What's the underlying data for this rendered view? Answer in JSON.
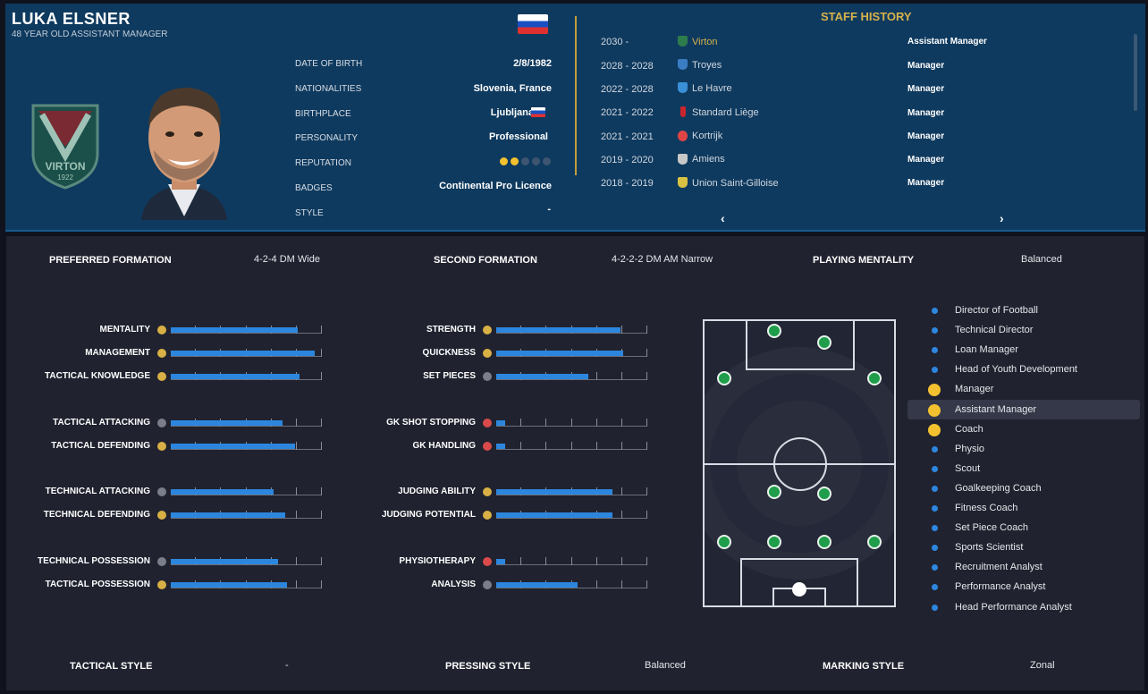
{
  "profile": {
    "name": "LUKA ELSNER",
    "subtitle": "48 YEAR OLD ASSISTANT MANAGER",
    "club_badge_text": "VIRTON",
    "club_badge_year": "1922"
  },
  "details": [
    {
      "label": "DATE OF BIRTH",
      "value": "2/8/1982"
    },
    {
      "label": "NATIONALITIES",
      "value": "Slovenia, France"
    },
    {
      "label": "BIRTHPLACE",
      "value": "Ljubljana"
    },
    {
      "label": "PERSONALITY",
      "value": "Professional"
    },
    {
      "label": "REPUTATION",
      "value": "",
      "reputation_stars": 2,
      "reputation_max": 5
    },
    {
      "label": "BADGES",
      "value": "Continental Pro Licence"
    },
    {
      "label": "STYLE",
      "value": "-"
    }
  ],
  "staff_history": {
    "title": "STAFF HISTORY",
    "rows": [
      {
        "years": "2030 -",
        "club": "Virton",
        "role": "Assistant Manager",
        "highlight": true
      },
      {
        "years": "2028 - 2028",
        "club": "Troyes",
        "role": "Manager"
      },
      {
        "years": "2022 - 2028",
        "club": "Le Havre",
        "role": "Manager"
      },
      {
        "years": "2021 - 2022",
        "club": "Standard Liège",
        "role": "Manager"
      },
      {
        "years": "2021 - 2021",
        "club": "Kortrijk",
        "role": "Manager"
      },
      {
        "years": "2019 - 2020",
        "club": "Amiens",
        "role": "Manager"
      },
      {
        "years": "2018 - 2019",
        "club": "Union Saint-Gilloise",
        "role": "Manager"
      }
    ],
    "prev_icon": "chevron-left-icon",
    "next_icon": "chevron-right-icon"
  },
  "formations": {
    "preferred_label": "PREFERRED FORMATION",
    "preferred": "4-2-4 DM Wide",
    "second_label": "SECOND FORMATION",
    "second": "4-2-2-2 DM AM Narrow",
    "mentality_label": "PLAYING MENTALITY",
    "mentality": "Balanced"
  },
  "attributes_left": [
    {
      "label": "MENTALITY",
      "value": 0.84
    },
    {
      "label": "MANAGEMENT",
      "value": 0.95
    },
    {
      "label": "TACTICAL KNOWLEDGE",
      "value": 0.85
    },
    {
      "label": "TACTICAL ATTACKING",
      "value": 0.74
    },
    {
      "label": "TACTICAL DEFENDING",
      "value": 0.82
    },
    {
      "label": "TECHNICAL ATTACKING",
      "value": 0.68
    },
    {
      "label": "TECHNICAL DEFENDING",
      "value": 0.76
    },
    {
      "label": "TECHNICAL POSSESSION",
      "value": 0.71
    },
    {
      "label": "TACTICAL POSSESSION",
      "value": 0.77
    }
  ],
  "attributes_right": [
    {
      "label": "STRENGTH",
      "value": 0.82
    },
    {
      "label": "QUICKNESS",
      "value": 0.84
    },
    {
      "label": "SET PIECES",
      "value": 0.61
    },
    {
      "label": "GK SHOT STOPPING",
      "value": 0.06
    },
    {
      "label": "GK HANDLING",
      "value": 0.06
    },
    {
      "label": "JUDGING ABILITY",
      "value": 0.77
    },
    {
      "label": "JUDGING POTENTIAL",
      "value": 0.77
    },
    {
      "label": "PHYSIOTHERAPY",
      "value": 0.06
    },
    {
      "label": "ANALYSIS",
      "value": 0.54
    }
  ],
  "roles": [
    {
      "label": "Director of Football",
      "strong": false
    },
    {
      "label": "Technical Director",
      "strong": false
    },
    {
      "label": "Loan Manager",
      "strong": false
    },
    {
      "label": "Head of Youth Development",
      "strong": false
    },
    {
      "label": "Manager",
      "strong": true
    },
    {
      "label": "Assistant Manager",
      "strong": true,
      "selected": true
    },
    {
      "label": "Coach",
      "strong": true
    },
    {
      "label": "Physio",
      "strong": false
    },
    {
      "label": "Scout",
      "strong": false
    },
    {
      "label": "Goalkeeping Coach",
      "strong": false
    },
    {
      "label": "Fitness Coach",
      "strong": false
    },
    {
      "label": "Set Piece Coach",
      "strong": false
    },
    {
      "label": "Sports Scientist",
      "strong": false
    },
    {
      "label": "Recruitment Analyst",
      "strong": false
    },
    {
      "label": "Performance Analyst",
      "strong": false
    },
    {
      "label": "Head Performance Analyst",
      "strong": false
    }
  ],
  "styles": {
    "tactical_label": "TACTICAL STYLE",
    "tactical": "-",
    "pressing_label": "PRESSING STYLE",
    "pressing": "Balanced",
    "marking_label": "MARKING STYLE",
    "marking": "Zonal"
  },
  "colors": {
    "accent_blue": "#2c86de",
    "gold": "#d7b24a",
    "panel": "#0f3a5f",
    "green_player": "#1f9d4a",
    "yellow": "#f3c12f"
  }
}
